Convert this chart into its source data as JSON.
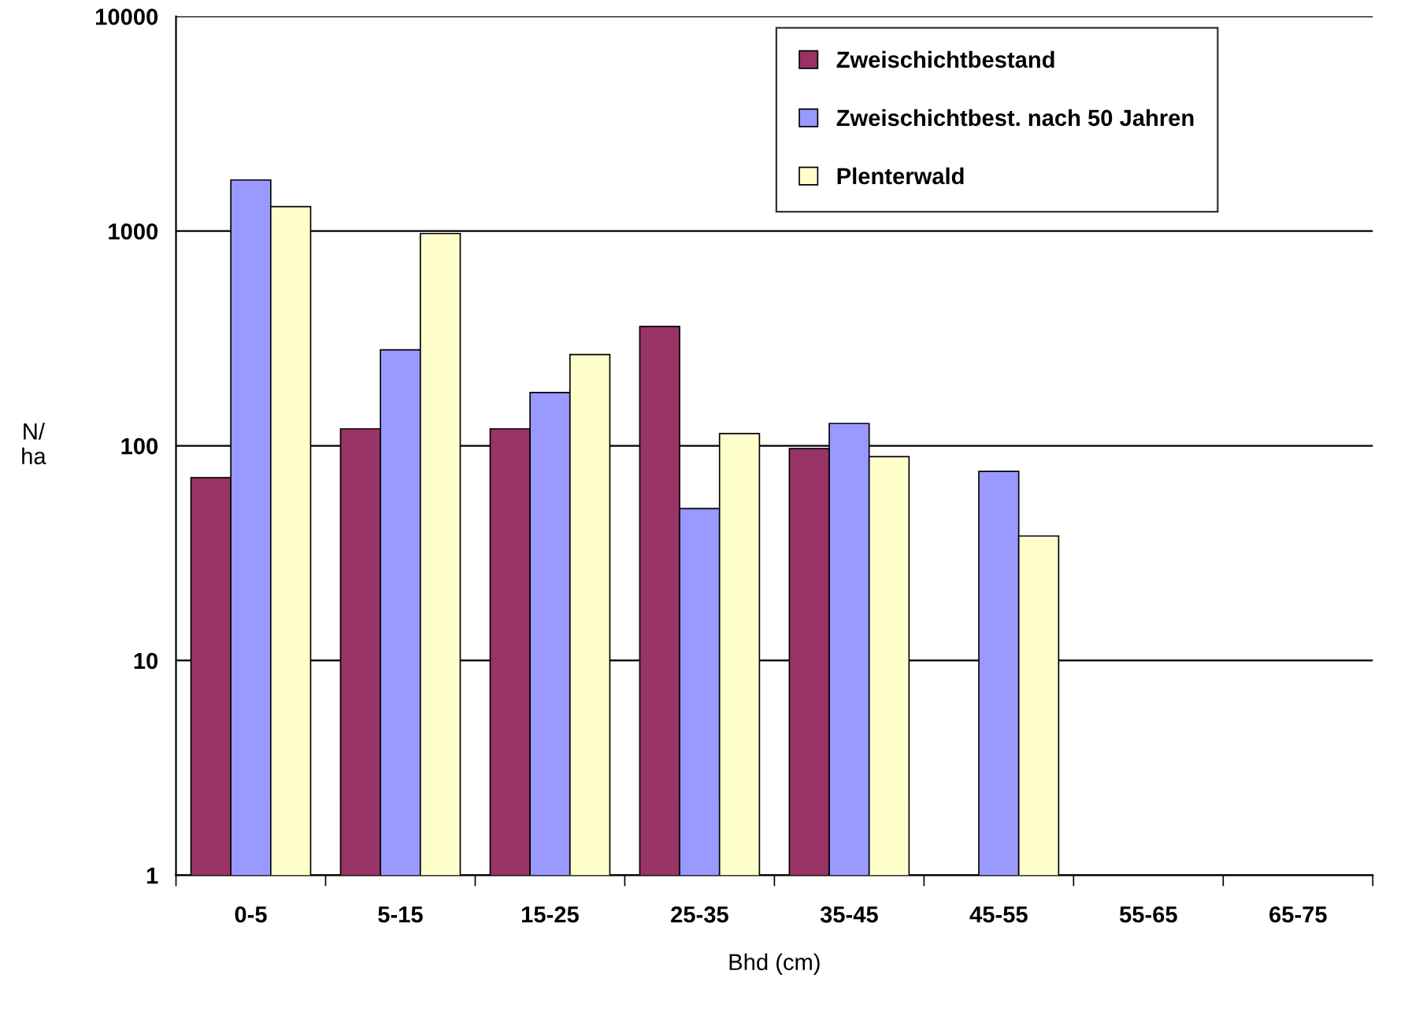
{
  "chart_data": {
    "type": "bar",
    "xlabel": "Bhd (cm)",
    "ylabel": "N/\nha",
    "categories": [
      "0-5",
      "5-15",
      "15-25",
      "25-35",
      "35-45",
      "45-55",
      "55-65",
      "65-75"
    ],
    "series": [
      {
        "name": "Zweischichtbestand",
        "color": "#993366",
        "values": [
          71,
          120,
          120,
          360,
          97,
          null,
          null,
          null
        ]
      },
      {
        "name": "Zweischichtbest. nach 50 Jahren",
        "color": "#9999ff",
        "values": [
          1730,
          280,
          177,
          51,
          127,
          76,
          null,
          null
        ]
      },
      {
        "name": "Plenterwald",
        "color": "#ffffcc",
        "values": [
          1300,
          975,
          266,
          114,
          89,
          38,
          null,
          null
        ]
      }
    ],
    "log": "y",
    "ylim": [
      1,
      10000
    ],
    "yticks": [
      1,
      10,
      100,
      1000,
      10000
    ],
    "grid": "y",
    "legend": "top right"
  }
}
